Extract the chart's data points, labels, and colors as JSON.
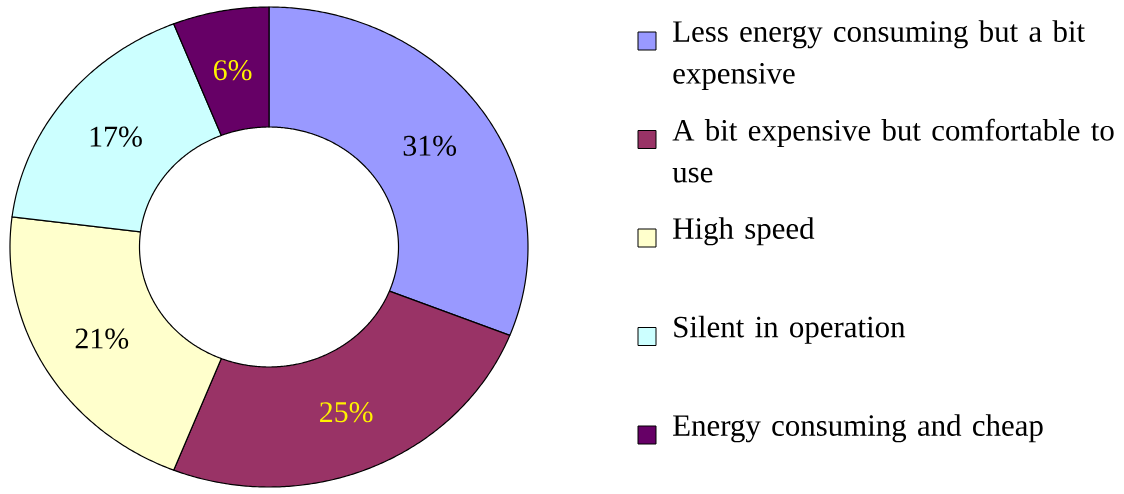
{
  "chart_data": {
    "type": "donut",
    "categories": [
      "Less energy consuming but a bit expensive",
      "A bit expensive but comfortable to use",
      "High speed",
      "Silent in operation",
      "Energy consuming and cheap"
    ],
    "values": [
      31,
      25,
      21,
      17,
      6
    ],
    "colors": [
      "#9999ff",
      "#993366",
      "#ffffcc",
      "#ccffff",
      "#660066"
    ],
    "value_labels": [
      "31%",
      "25%",
      "21%",
      "17%",
      "6%"
    ],
    "legend": "right"
  }
}
